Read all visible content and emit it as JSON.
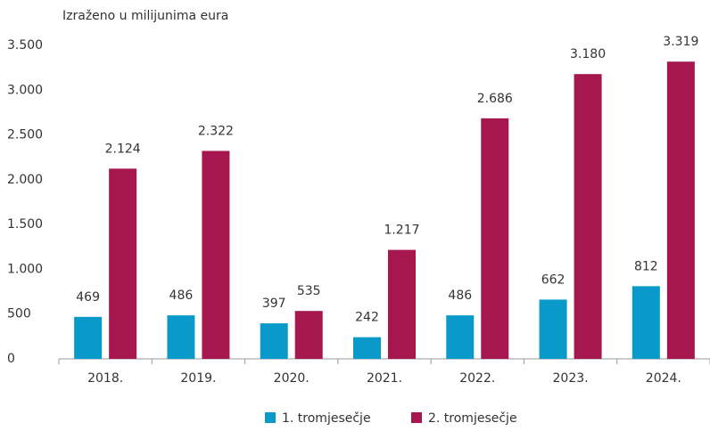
{
  "chart_data": {
    "type": "bar",
    "y_axis_label": "Izraženo u milijunima eura",
    "categories": [
      "2018.",
      "2019.",
      "2020.",
      "2021.",
      "2022.",
      "2023.",
      "2024."
    ],
    "series": [
      {
        "name": "1. tromjesečje",
        "color": "#0a9ac9",
        "values": [
          469,
          486,
          397,
          242,
          486,
          662,
          812
        ],
        "value_labels": [
          "469",
          "486",
          "397",
          "242",
          "486",
          "662",
          "812"
        ]
      },
      {
        "name": "2. tromjesečje",
        "color": "#a5174e",
        "values": [
          2124,
          2322,
          535,
          1217,
          2686,
          3180,
          3319
        ],
        "value_labels": [
          "2.124",
          "2.322",
          "535",
          "1.217",
          "2.686",
          "3.180",
          "3.319"
        ]
      }
    ],
    "ylim": [
      0,
      3500
    ],
    "yticks": [
      0,
      500,
      {
        "value": 1000,
        "label": "1.000"
      },
      {
        "value": 1500,
        "label": "1.500"
      },
      {
        "value": 2000,
        "label": "2.000"
      },
      {
        "value": 2500,
        "label": "2.500"
      },
      {
        "value": 3000,
        "label": "3.000"
      },
      {
        "value": 3500,
        "label": "3.500"
      }
    ],
    "grid": false,
    "legend": "bottom"
  }
}
